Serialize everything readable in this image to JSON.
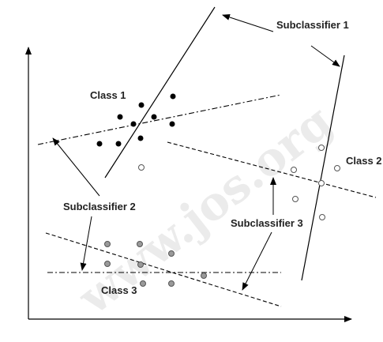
{
  "labels": {
    "subclassifier_1": "Subclassifier 1",
    "subclassifier_2": "Subclassifier 2",
    "subclassifier_3": "Subclassifier 3",
    "class_1": "Class 1",
    "class_2": "Class 2",
    "class_3": "Class 3"
  },
  "watermark": "www.jos.org",
  "colors": {
    "class_1_points": "#000000",
    "class_2_points": "#ffffff",
    "class_3_points": "#999999",
    "lines": "#000000",
    "watermark": "#ebebeb"
  },
  "point_counts": {
    "class_1": 10,
    "class_2": 6,
    "class_3": 8
  }
}
